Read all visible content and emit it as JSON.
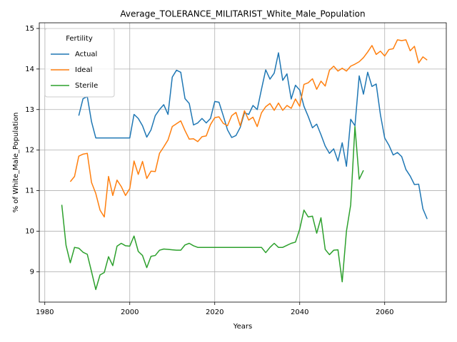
{
  "chart_data": {
    "type": "line",
    "title": "Average_TOLERANCE_MILITARIST_White_Male_Population",
    "x_label": "Years",
    "y_label": "% of White_Male_Population",
    "legend_title": "Fertility",
    "legend": "upper left",
    "grid": true,
    "xlim": [
      1978.7,
      2074.5
    ],
    "ylim": [
      8.25,
      15.14
    ],
    "xticks": [
      1980,
      2000,
      2020,
      2040,
      2060
    ],
    "yticks": [
      9,
      10,
      11,
      12,
      13,
      14,
      15
    ],
    "x": [
      1984,
      1985,
      1986,
      1987,
      1988,
      1989,
      1990,
      1991,
      1992,
      1993,
      1994,
      1995,
      1996,
      1997,
      1998,
      1999,
      2000,
      2001,
      2002,
      2003,
      2004,
      2005,
      2006,
      2007,
      2008,
      2009,
      2010,
      2011,
      2012,
      2013,
      2014,
      2015,
      2016,
      2017,
      2018,
      2019,
      2020,
      2021,
      2022,
      2023,
      2024,
      2025,
      2026,
      2027,
      2028,
      2029,
      2030,
      2031,
      2032,
      2033,
      2034,
      2035,
      2036,
      2037,
      2038,
      2039,
      2040,
      2041,
      2042,
      2043,
      2044,
      2045,
      2046,
      2047,
      2048,
      2049,
      2050,
      2051,
      2052,
      2053,
      2054,
      2055,
      2056,
      2057,
      2058,
      2059,
      2060,
      2061,
      2062,
      2063,
      2064,
      2065,
      2066,
      2067,
      2068,
      2069,
      2070
    ],
    "series": [
      {
        "name": "Actual",
        "color": "#1f77b4",
        "values": [
          null,
          null,
          null,
          null,
          12.85,
          13.27,
          13.32,
          12.7,
          12.3,
          12.3,
          12.3,
          12.3,
          12.3,
          12.3,
          12.3,
          12.3,
          12.3,
          12.88,
          12.78,
          12.6,
          12.32,
          12.5,
          12.85,
          13.0,
          13.12,
          12.88,
          13.8,
          13.97,
          13.92,
          13.27,
          13.15,
          12.62,
          12.67,
          12.78,
          12.67,
          12.78,
          13.2,
          13.18,
          12.85,
          12.5,
          12.31,
          12.36,
          12.56,
          12.92,
          12.88,
          13.1,
          13.0,
          13.5,
          13.98,
          13.75,
          13.9,
          14.4,
          13.72,
          13.88,
          13.26,
          13.6,
          13.48,
          13.08,
          12.83,
          12.55,
          12.64,
          12.38,
          12.1,
          11.92,
          12.03,
          11.73,
          12.18,
          11.6,
          12.76,
          12.6,
          13.83,
          13.38,
          13.92,
          13.57,
          13.63,
          12.87,
          12.3,
          12.12,
          11.88,
          11.94,
          11.84,
          11.52,
          11.36,
          11.15,
          11.16,
          10.55,
          10.3
        ]
      },
      {
        "name": "Ideal",
        "color": "#ff7f0e",
        "values": [
          null,
          null,
          11.22,
          11.35,
          11.85,
          11.9,
          11.92,
          11.2,
          10.93,
          10.52,
          10.35,
          11.35,
          10.88,
          11.26,
          11.1,
          10.88,
          11.05,
          11.73,
          11.4,
          11.72,
          11.3,
          11.48,
          11.47,
          11.92,
          12.08,
          12.25,
          12.58,
          12.65,
          12.72,
          12.48,
          12.27,
          12.28,
          12.21,
          12.33,
          12.35,
          12.63,
          12.8,
          12.82,
          12.66,
          12.6,
          12.85,
          12.93,
          12.6,
          12.97,
          12.74,
          12.81,
          12.58,
          12.92,
          13.07,
          13.15,
          12.98,
          13.16,
          12.98,
          13.1,
          13.03,
          13.26,
          13.08,
          13.62,
          13.66,
          13.76,
          13.5,
          13.7,
          13.58,
          13.97,
          14.07,
          13.95,
          14.02,
          13.95,
          14.07,
          14.12,
          14.18,
          14.28,
          14.42,
          14.58,
          14.36,
          14.44,
          14.32,
          14.48,
          14.5,
          14.72,
          14.7,
          14.72,
          14.45,
          14.56,
          14.15,
          14.3,
          14.22
        ]
      },
      {
        "name": "Sterile",
        "color": "#2ca02c",
        "values": [
          10.65,
          9.65,
          9.22,
          9.6,
          9.58,
          9.48,
          9.43,
          9.0,
          8.56,
          8.92,
          8.98,
          9.37,
          9.15,
          9.63,
          9.7,
          9.64,
          9.63,
          9.88,
          9.5,
          9.4,
          9.1,
          9.38,
          9.4,
          9.53,
          9.56,
          9.55,
          9.54,
          9.53,
          9.53,
          9.66,
          9.7,
          9.64,
          9.6,
          9.6,
          9.6,
          9.6,
          9.6,
          9.6,
          9.6,
          9.6,
          9.6,
          9.6,
          9.6,
          9.6,
          9.6,
          9.6,
          9.6,
          9.6,
          9.47,
          9.6,
          9.7,
          9.6,
          9.6,
          9.65,
          9.7,
          9.73,
          10.05,
          10.52,
          10.35,
          10.37,
          9.95,
          10.33,
          9.55,
          9.42,
          9.53,
          9.54,
          8.75,
          10.0,
          10.65,
          12.58,
          11.28,
          11.5,
          null,
          null,
          null,
          null,
          null,
          null,
          null,
          null,
          null,
          null,
          null,
          null,
          null,
          null,
          null
        ]
      }
    ]
  }
}
